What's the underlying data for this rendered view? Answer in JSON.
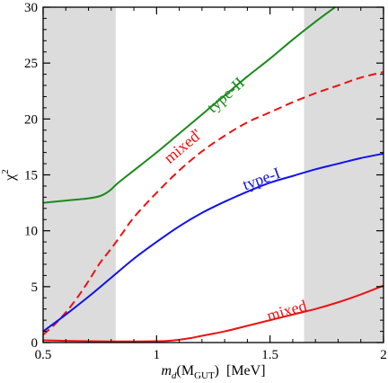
{
  "chart_data": {
    "type": "line",
    "xlabel": "m_d(M_GUT) [MeV]",
    "xlabel_parts": {
      "main": "m",
      "sub": "d",
      "open": "(M",
      "sub2": "GUT",
      "close": ")",
      "unit": "[MeV]"
    },
    "ylabel": "χ",
    "ylabel_sup": "2",
    "xlim": [
      0.5,
      2.0
    ],
    "ylim": [
      0,
      30
    ],
    "x_ticks": [
      0.5,
      1,
      1.5,
      2
    ],
    "x_tick_labels": [
      "0.5",
      "1",
      "1.5",
      "2"
    ],
    "y_ticks": [
      0,
      5,
      10,
      15,
      20,
      25,
      30
    ],
    "y_tick_labels": [
      "0",
      "5",
      "10",
      "15",
      "20",
      "25",
      "30"
    ],
    "grid": false,
    "shaded_regions": [
      [
        0.5,
        0.82
      ],
      [
        1.65,
        2.0
      ]
    ],
    "series": [
      {
        "name": "type-II",
        "color": "#1a8a1a",
        "dash": "solid",
        "x": [
          0.5,
          0.6,
          0.7,
          0.75,
          0.78,
          0.8,
          0.82,
          0.85,
          0.9,
          1.0,
          1.1,
          1.2,
          1.3,
          1.4,
          1.5,
          1.6,
          1.7,
          1.8
        ],
        "y": [
          12.5,
          12.7,
          12.9,
          13.1,
          13.4,
          13.7,
          14.1,
          14.6,
          15.4,
          17.0,
          18.7,
          20.4,
          22.1,
          23.8,
          25.4,
          27.1,
          28.7,
          30.2
        ]
      },
      {
        "name": "mixed'",
        "color": "#ee1111",
        "dash": "dashed",
        "x": [
          0.5,
          0.55,
          0.6,
          0.65,
          0.7,
          0.75,
          0.8,
          0.85,
          0.9,
          1.0,
          1.1,
          1.2,
          1.3,
          1.4,
          1.5,
          1.6,
          1.7,
          1.8,
          1.9,
          2.0
        ],
        "y": [
          0.7,
          1.6,
          2.7,
          4.0,
          5.5,
          7.1,
          8.4,
          9.8,
          11.2,
          13.4,
          15.4,
          17.1,
          18.5,
          19.7,
          20.6,
          21.5,
          22.3,
          23.0,
          23.7,
          24.2
        ]
      },
      {
        "name": "type-I",
        "color": "#1111ee",
        "dash": "solid",
        "x": [
          0.5,
          0.6,
          0.7,
          0.8,
          0.9,
          1.0,
          1.1,
          1.2,
          1.3,
          1.4,
          1.5,
          1.6,
          1.7,
          1.8,
          1.9,
          2.0
        ],
        "y": [
          1.0,
          2.5,
          4.1,
          5.8,
          7.5,
          9.0,
          10.4,
          11.6,
          12.6,
          13.5,
          14.3,
          14.9,
          15.5,
          16.0,
          16.5,
          16.9
        ]
      },
      {
        "name": "mixed",
        "color": "#ee1111",
        "dash": "solid",
        "x": [
          0.5,
          0.6,
          0.7,
          0.8,
          0.9,
          1.0,
          1.05,
          1.1,
          1.15,
          1.2,
          1.3,
          1.4,
          1.5,
          1.6,
          1.7,
          1.8,
          1.9,
          2.0
        ],
        "y": [
          0.2,
          0.15,
          0.12,
          0.1,
          0.1,
          0.12,
          0.15,
          0.25,
          0.4,
          0.6,
          1.0,
          1.5,
          2.0,
          2.5,
          3.0,
          3.6,
          4.3,
          5.1
        ]
      }
    ],
    "curve_labels": [
      {
        "text": "type-II",
        "x": 1.32,
        "y": 21.8,
        "angle": -42,
        "color": "#1a8a1a"
      },
      {
        "text": "mixed'",
        "x": 1.13,
        "y": 17.2,
        "angle": -40,
        "color": "#ee1111"
      },
      {
        "text": "type-I",
        "x": 1.47,
        "y": 14.2,
        "angle": -20,
        "color": "#1111ee"
      },
      {
        "text": "mixed",
        "x": 1.58,
        "y": 2.4,
        "angle": -16,
        "color": "#ee1111"
      }
    ]
  }
}
